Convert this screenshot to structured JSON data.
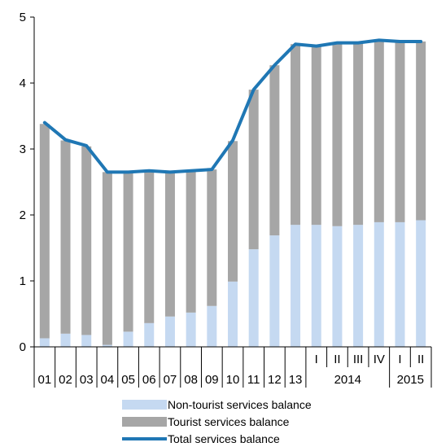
{
  "chart_data": {
    "type": "bar",
    "stacked": true,
    "title": "",
    "xlabel": "",
    "ylabel": "",
    "ylim": [
      0,
      5
    ],
    "y_ticks": [
      "0",
      "1",
      "2",
      "3",
      "4",
      "5"
    ],
    "categories": [
      "01",
      "02",
      "03",
      "04",
      "05",
      "06",
      "07",
      "08",
      "09",
      "10",
      "11",
      "12",
      "13",
      "I",
      "II",
      "III",
      "IV",
      "I",
      "II"
    ],
    "groups": [
      {
        "label": "2014",
        "categories": [
          "I",
          "II",
          "III",
          "IV"
        ]
      },
      {
        "label": "2015",
        "categories": [
          "I",
          "II"
        ]
      }
    ],
    "series": [
      {
        "name": "Non-tourist services balance",
        "kind": "bar",
        "color": "#c5d9f1",
        "values": [
          0.13,
          0.2,
          0.18,
          0.03,
          0.23,
          0.36,
          0.46,
          0.52,
          0.62,
          0.99,
          1.48,
          1.69,
          1.85,
          1.85,
          1.83,
          1.85,
          1.89,
          1.89,
          1.92
        ]
      },
      {
        "name": "Tourist services balance",
        "kind": "bar",
        "color": "#a6a6a6",
        "values": [
          3.25,
          2.93,
          2.86,
          2.62,
          2.41,
          2.3,
          2.18,
          2.14,
          2.07,
          2.13,
          2.42,
          2.58,
          2.74,
          2.71,
          2.78,
          2.76,
          2.76,
          2.74,
          2.71
        ]
      },
      {
        "name": "Total services balance",
        "kind": "line",
        "color": "#1f77b4",
        "values": [
          3.4,
          3.14,
          3.05,
          2.65,
          2.65,
          2.67,
          2.65,
          2.67,
          2.69,
          3.13,
          3.9,
          4.27,
          4.59,
          4.56,
          4.61,
          4.61,
          4.65,
          4.63,
          4.63
        ]
      }
    ],
    "grid": false,
    "legend_position": "bottom"
  }
}
